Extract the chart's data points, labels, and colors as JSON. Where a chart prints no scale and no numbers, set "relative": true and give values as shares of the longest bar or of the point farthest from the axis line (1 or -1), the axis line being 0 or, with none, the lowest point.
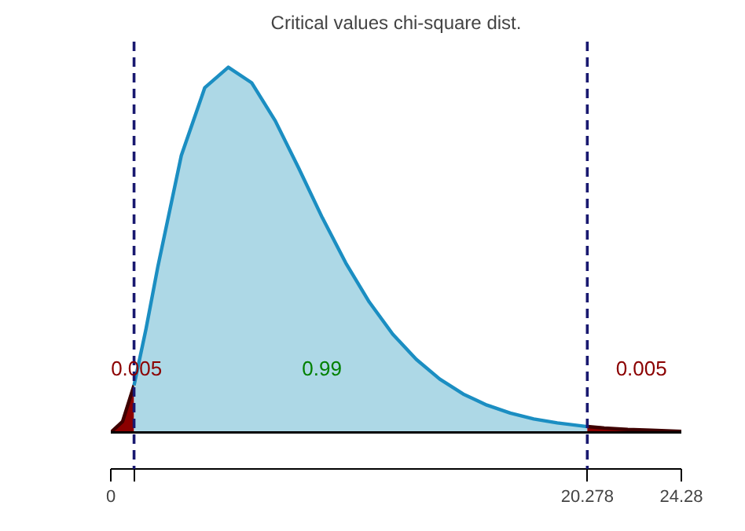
{
  "chart_data": {
    "type": "area",
    "title": "Critical values chi-square dist.",
    "relative": true,
    "series": [
      {
        "color": "#8b0000",
        "x": [
          0,
          0.5,
          0.989
        ],
        "values": [
          0,
          0.03,
          0.129
        ]
      },
      {
        "color": "#add8e6",
        "x": [
          0.989,
          1.5,
          2,
          3,
          4,
          5,
          6,
          7,
          8,
          9,
          10,
          11,
          12,
          13,
          14,
          15,
          16,
          17,
          18,
          19,
          20.278
        ],
        "values": [
          0.129,
          0.284,
          0.453,
          0.758,
          0.944,
          1,
          0.957,
          0.853,
          0.723,
          0.588,
          0.464,
          0.357,
          0.269,
          0.2,
          0.146,
          0.105,
          0.075,
          0.053,
          0.037,
          0.026,
          0.016
        ]
      },
      {
        "color": "#8b0000",
        "x": [
          20.278,
          21,
          22,
          23,
          24.28
        ],
        "values": [
          0.016,
          0.012,
          0.008,
          0.006,
          0.003
        ]
      }
    ],
    "xlim": [
      0,
      24.28
    ],
    "xticks": [
      0,
      {
        "value": 0.989,
        "label": null
      },
      20.278,
      24.28
    ],
    "tick_labels": "x",
    "grid": false,
    "ref_lines": [
      {
        "axis": "x",
        "value": 0.989,
        "color": "#191970",
        "line_style": "dashed"
      },
      {
        "axis": "x",
        "value": 20.278,
        "color": "#191970",
        "line_style": "dashed"
      }
    ],
    "annotations": [
      "0.005",
      "0.99",
      "0.005"
    ]
  }
}
